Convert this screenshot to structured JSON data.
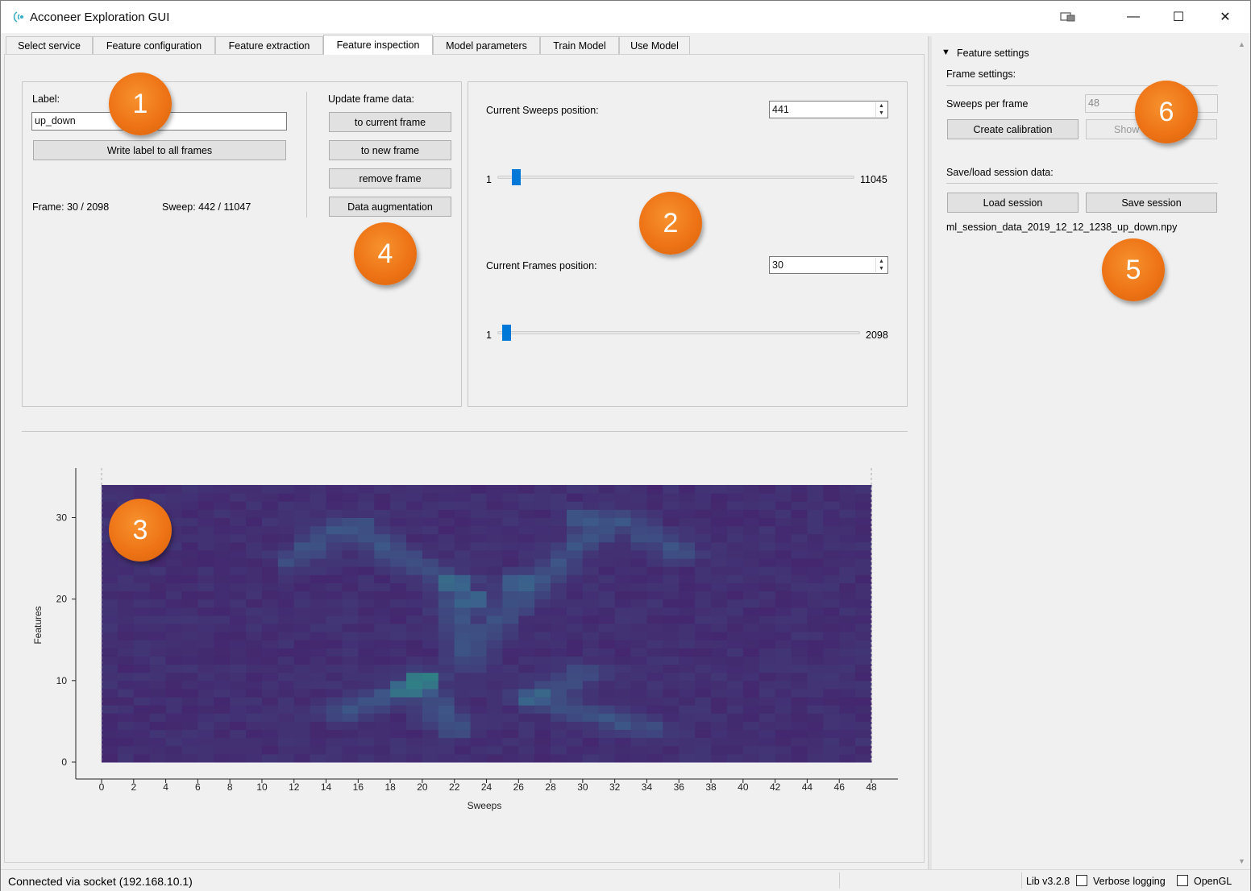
{
  "app": {
    "title": "Acconeer Exploration GUI",
    "window_buttons": {
      "minimize": "—",
      "maximize": "☐",
      "close": "✕"
    }
  },
  "tabs": [
    {
      "label": "Select service"
    },
    {
      "label": "Feature configuration"
    },
    {
      "label": "Feature extraction"
    },
    {
      "label": "Feature inspection",
      "active": true
    },
    {
      "label": "Model parameters"
    },
    {
      "label": "Train Model"
    },
    {
      "label": "Use Model"
    }
  ],
  "label_panel": {
    "label_title": "Label:",
    "label_value": "up_down",
    "write_label_button": "Write label to all frames",
    "frame_text": "Frame: 30 / 2098",
    "sweep_text": "Sweep: 442 / 11047"
  },
  "update_panel": {
    "title": "Update frame data:",
    "to_current_frame": "to current frame",
    "to_new_frame": "to new frame",
    "remove_frame": "remove frame",
    "data_augmentation": "Data augmentation"
  },
  "position_panel": {
    "sweeps_label": "Current Sweeps position:",
    "sweeps_value": "441",
    "sweeps_min": "1",
    "sweeps_max": "11045",
    "frames_label": "Current Frames position:",
    "frames_value": "30",
    "frames_min": "1",
    "frames_max": "2098"
  },
  "right_panel": {
    "feature_settings": "Feature settings",
    "frame_settings": "Frame settings:",
    "sweeps_per_frame_label": "Sweeps per frame",
    "sweeps_per_frame_value": "48",
    "create_calibration": "Create calibration",
    "show_calibration": "Show",
    "session_title": "Save/load session data:",
    "load_session": "Load session",
    "save_session": "Save session",
    "session_file": "ml_session_data_2019_12_12_1238_up_down.npy"
  },
  "badges": [
    "1",
    "2",
    "3",
    "4",
    "5",
    "6"
  ],
  "statusbar": {
    "connection": "Connected via socket (192.168.10.1)",
    "lib_version": "Lib v3.2.8",
    "verbose_logging": "Verbose logging",
    "opengl": "OpenGL"
  },
  "chart_data": {
    "type": "heatmap",
    "xlabel": "Sweeps",
    "ylabel": "Features",
    "xlim": [
      0,
      48
    ],
    "ylim": [
      0,
      34
    ],
    "x_ticks": [
      0,
      2,
      4,
      6,
      8,
      10,
      12,
      14,
      16,
      18,
      20,
      22,
      24,
      26,
      28,
      30,
      32,
      34,
      36,
      38,
      40,
      42,
      44,
      46,
      48
    ],
    "y_ticks": [
      0,
      10,
      20,
      30
    ],
    "colormap": "viridis",
    "colors": {
      "low": "#45216b",
      "mid": "#3b5f8c",
      "high": "#25a57e"
    },
    "hotspots": [
      {
        "x": 20,
        "y": 10,
        "intensity": 0.9
      },
      {
        "x": 19,
        "y": 9,
        "intensity": 0.75
      },
      {
        "x": 22,
        "y": 22,
        "intensity": 0.7
      },
      {
        "x": 26,
        "y": 22,
        "intensity": 0.6
      },
      {
        "x": 23,
        "y": 20,
        "intensity": 0.55
      },
      {
        "x": 27,
        "y": 8,
        "intensity": 0.6
      },
      {
        "x": 16,
        "y": 29,
        "intensity": 0.45
      },
      {
        "x": 30,
        "y": 30,
        "intensity": 0.45
      }
    ]
  }
}
